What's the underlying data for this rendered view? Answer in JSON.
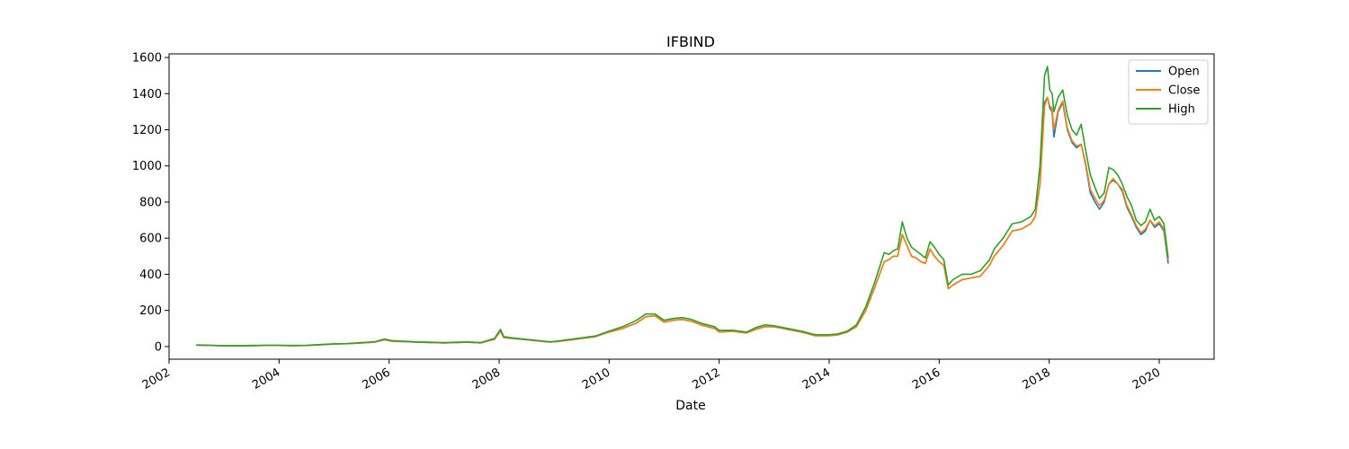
{
  "chart_data": {
    "type": "line",
    "title": "IFBIND",
    "xlabel": "Date",
    "ylabel": "",
    "x_range": [
      "2002-01-01",
      "2020-12-31"
    ],
    "ylim": [
      -70,
      1620
    ],
    "y_ticks": [
      0,
      200,
      400,
      600,
      800,
      1000,
      1200,
      1400,
      1600
    ],
    "x_ticks": [
      "2002",
      "2004",
      "2006",
      "2008",
      "2010",
      "2012",
      "2014",
      "2016",
      "2018",
      "2020"
    ],
    "grid": false,
    "legend_position": "top-right",
    "colors": {
      "Open": "#1f77b4",
      "Close": "#ff7f0e",
      "High": "#2ca02c"
    },
    "x": [
      "2002-07-01",
      "2002-10-01",
      "2003-01-01",
      "2003-04-01",
      "2003-07-01",
      "2003-10-01",
      "2004-01-01",
      "2004-04-01",
      "2004-07-01",
      "2004-10-01",
      "2005-01-01",
      "2005-04-01",
      "2005-07-01",
      "2005-10-01",
      "2005-12-01",
      "2006-01-15",
      "2006-04-01",
      "2006-07-01",
      "2006-10-01",
      "2007-01-01",
      "2007-04-01",
      "2007-06-01",
      "2007-09-01",
      "2007-12-01",
      "2008-01-10",
      "2008-02-01",
      "2008-04-01",
      "2008-07-01",
      "2008-10-01",
      "2008-12-01",
      "2009-01-01",
      "2009-04-01",
      "2009-07-01",
      "2009-10-01",
      "2010-01-01",
      "2010-04-01",
      "2010-07-01",
      "2010-09-01",
      "2010-11-01",
      "2011-01-01",
      "2011-03-01",
      "2011-05-01",
      "2011-07-01",
      "2011-09-01",
      "2011-12-01",
      "2012-01-01",
      "2012-04-01",
      "2012-07-01",
      "2012-09-01",
      "2012-11-01",
      "2013-01-01",
      "2013-04-01",
      "2013-07-01",
      "2013-10-01",
      "2014-01-01",
      "2014-03-01",
      "2014-05-01",
      "2014-07-01",
      "2014-09-01",
      "2014-11-01",
      "2015-01-01",
      "2015-02-01",
      "2015-03-01",
      "2015-04-01",
      "2015-05-01",
      "2015-06-01",
      "2015-07-01",
      "2015-08-01",
      "2015-09-01",
      "2015-10-01",
      "2015-11-01",
      "2015-12-01",
      "2016-01-01",
      "2016-02-01",
      "2016-03-01",
      "2016-04-01",
      "2016-06-01",
      "2016-08-01",
      "2016-10-01",
      "2016-12-01",
      "2017-01-01",
      "2017-03-01",
      "2017-05-01",
      "2017-07-01",
      "2017-09-01",
      "2017-10-01",
      "2017-11-01",
      "2017-12-01",
      "2017-12-20",
      "2018-01-05",
      "2018-01-20",
      "2018-02-01",
      "2018-03-01",
      "2018-04-01",
      "2018-05-01",
      "2018-06-01",
      "2018-07-01",
      "2018-08-01",
      "2018-09-01",
      "2018-10-01",
      "2018-11-01",
      "2018-12-01",
      "2019-01-01",
      "2019-02-01",
      "2019-03-01",
      "2019-04-01",
      "2019-05-01",
      "2019-06-01",
      "2019-07-01",
      "2019-08-01",
      "2019-09-01",
      "2019-10-01",
      "2019-11-01",
      "2019-12-01",
      "2020-01-01",
      "2020-02-01",
      "2020-03-01"
    ],
    "series": [
      {
        "name": "Open",
        "values": [
          8,
          6,
          5,
          4,
          5,
          6,
          6,
          5,
          6,
          10,
          14,
          16,
          20,
          25,
          38,
          30,
          28,
          24,
          22,
          20,
          22,
          24,
          20,
          40,
          85,
          50,
          45,
          38,
          30,
          25,
          26,
          35,
          45,
          55,
          80,
          100,
          130,
          165,
          170,
          135,
          145,
          150,
          140,
          120,
          100,
          80,
          85,
          75,
          95,
          110,
          110,
          95,
          80,
          60,
          60,
          65,
          80,
          110,
          200,
          330,
          470,
          480,
          500,
          500,
          620,
          560,
          500,
          490,
          470,
          460,
          540,
          500,
          470,
          450,
          320,
          340,
          370,
          380,
          390,
          450,
          500,
          560,
          640,
          650,
          680,
          720,
          900,
          1350,
          1380,
          1320,
          1300,
          1160,
          1300,
          1350,
          1200,
          1130,
          1100,
          1120,
          1000,
          850,
          800,
          760,
          800,
          900,
          920,
          900,
          860,
          770,
          720,
          660,
          620,
          640,
          700,
          660,
          680,
          640,
          460
        ]
      },
      {
        "name": "Close",
        "values": [
          8,
          6,
          5,
          4,
          5,
          6,
          6,
          5,
          6,
          10,
          14,
          16,
          20,
          25,
          38,
          30,
          28,
          24,
          22,
          20,
          22,
          24,
          20,
          40,
          85,
          50,
          45,
          38,
          30,
          25,
          26,
          35,
          45,
          55,
          80,
          100,
          130,
          165,
          170,
          135,
          145,
          150,
          140,
          120,
          100,
          80,
          85,
          75,
          95,
          110,
          110,
          95,
          80,
          60,
          60,
          65,
          80,
          110,
          200,
          330,
          470,
          480,
          500,
          500,
          620,
          560,
          500,
          490,
          470,
          460,
          540,
          500,
          470,
          450,
          320,
          340,
          370,
          380,
          390,
          450,
          500,
          560,
          640,
          650,
          680,
          720,
          900,
          1330,
          1380,
          1330,
          1320,
          1200,
          1310,
          1360,
          1210,
          1140,
          1110,
          1120,
          1010,
          870,
          820,
          780,
          810,
          900,
          930,
          900,
          870,
          780,
          730,
          670,
          630,
          650,
          700,
          670,
          690,
          650,
          480
        ]
      },
      {
        "name": "High",
        "values": [
          9,
          7,
          5,
          5,
          6,
          7,
          7,
          6,
          7,
          11,
          15,
          17,
          22,
          27,
          42,
          33,
          30,
          26,
          24,
          22,
          24,
          26,
          22,
          45,
          95,
          55,
          48,
          40,
          32,
          27,
          28,
          38,
          48,
          58,
          85,
          110,
          145,
          180,
          180,
          145,
          155,
          160,
          150,
          130,
          110,
          90,
          90,
          80,
          105,
          120,
          115,
          100,
          85,
          65,
          65,
          70,
          85,
          120,
          220,
          360,
          520,
          510,
          530,
          540,
          690,
          600,
          550,
          530,
          510,
          490,
          580,
          550,
          510,
          480,
          340,
          370,
          400,
          400,
          420,
          480,
          540,
          600,
          680,
          690,
          720,
          760,
          1000,
          1500,
          1550,
          1420,
          1400,
          1300,
          1380,
          1420,
          1280,
          1200,
          1170,
          1230,
          1080,
          950,
          880,
          820,
          850,
          990,
          980,
          950,
          900,
          830,
          780,
          700,
          670,
          690,
          760,
          700,
          720,
          680,
          490
        ]
      }
    ]
  }
}
